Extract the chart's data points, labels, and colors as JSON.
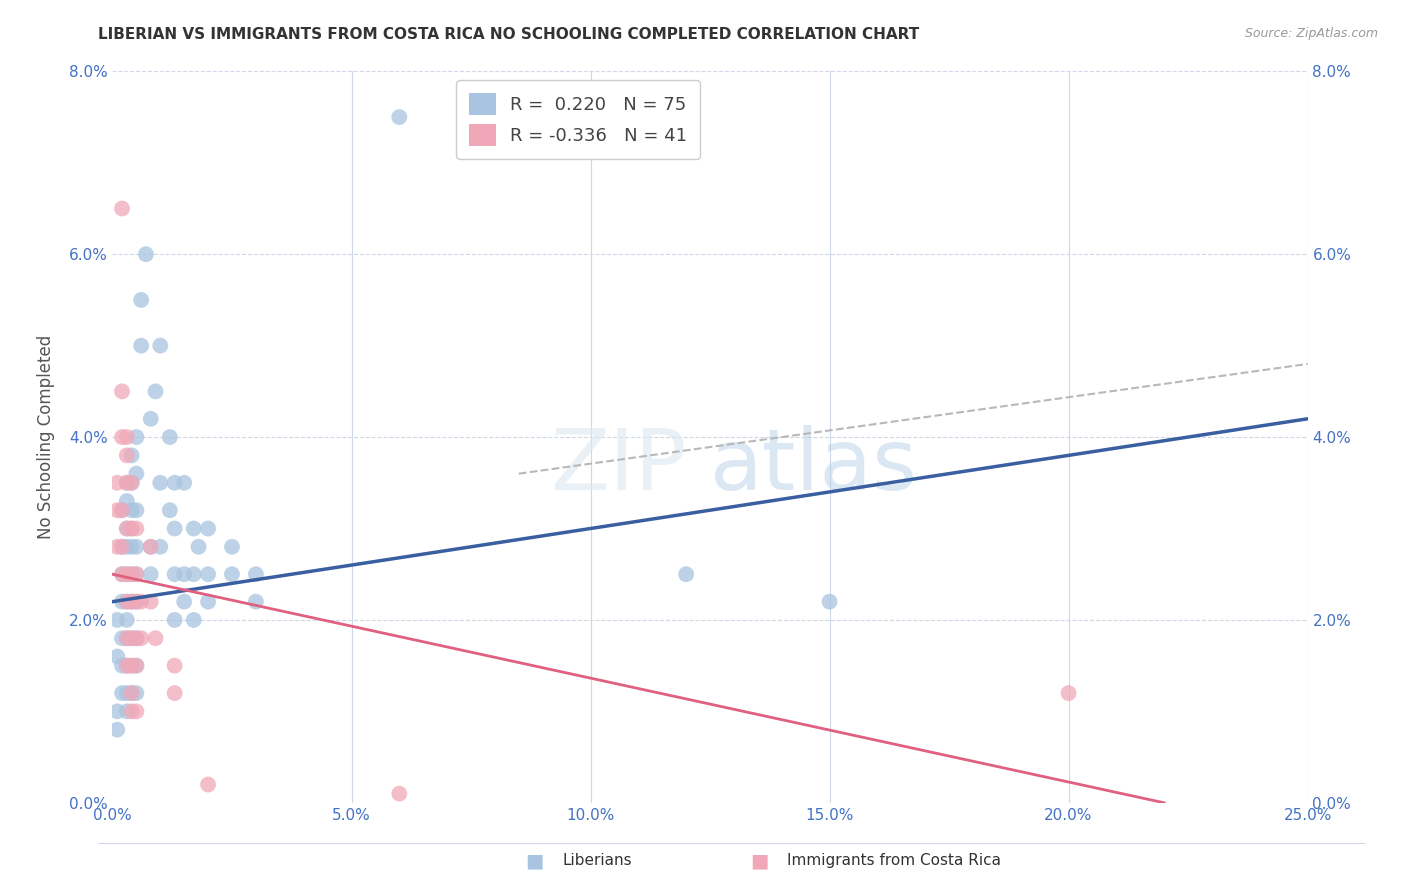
{
  "title": "LIBERIAN VS IMMIGRANTS FROM COSTA RICA NO SCHOOLING COMPLETED CORRELATION CHART",
  "source": "Source: ZipAtlas.com",
  "ylabel_label": "No Schooling Completed",
  "xmin": 0.0,
  "xmax": 0.25,
  "ymin": 0.0,
  "ymax": 0.08,
  "blue_color": "#a8c4e0",
  "pink_color": "#f0a8b8",
  "line_blue": "#3a5fa0",
  "line_pink": "#e06080",
  "line_dash": "#b8b8b8",
  "watermark_zip": "ZIP",
  "watermark_atlas": "atlas",
  "blue_line_x": [
    0.0,
    0.25
  ],
  "blue_line_y": [
    0.022,
    0.042
  ],
  "pink_line_x": [
    0.0,
    0.22
  ],
  "pink_line_y": [
    0.025,
    0.0
  ],
  "dash_line_x": [
    0.085,
    0.25
  ],
  "dash_line_y": [
    0.036,
    0.048
  ],
  "blue_points": [
    [
      0.001,
      0.02
    ],
    [
      0.001,
      0.016
    ],
    [
      0.001,
      0.01
    ],
    [
      0.001,
      0.008
    ],
    [
      0.002,
      0.032
    ],
    [
      0.002,
      0.028
    ],
    [
      0.002,
      0.025
    ],
    [
      0.002,
      0.022
    ],
    [
      0.002,
      0.018
    ],
    [
      0.002,
      0.015
    ],
    [
      0.002,
      0.012
    ],
    [
      0.003,
      0.035
    ],
    [
      0.003,
      0.033
    ],
    [
      0.003,
      0.03
    ],
    [
      0.003,
      0.028
    ],
    [
      0.003,
      0.025
    ],
    [
      0.003,
      0.022
    ],
    [
      0.003,
      0.02
    ],
    [
      0.003,
      0.018
    ],
    [
      0.003,
      0.015
    ],
    [
      0.003,
      0.012
    ],
    [
      0.003,
      0.01
    ],
    [
      0.004,
      0.038
    ],
    [
      0.004,
      0.035
    ],
    [
      0.004,
      0.032
    ],
    [
      0.004,
      0.03
    ],
    [
      0.004,
      0.028
    ],
    [
      0.004,
      0.025
    ],
    [
      0.004,
      0.022
    ],
    [
      0.004,
      0.018
    ],
    [
      0.004,
      0.015
    ],
    [
      0.004,
      0.012
    ],
    [
      0.005,
      0.04
    ],
    [
      0.005,
      0.036
    ],
    [
      0.005,
      0.032
    ],
    [
      0.005,
      0.028
    ],
    [
      0.005,
      0.025
    ],
    [
      0.005,
      0.022
    ],
    [
      0.005,
      0.018
    ],
    [
      0.005,
      0.015
    ],
    [
      0.005,
      0.012
    ],
    [
      0.006,
      0.055
    ],
    [
      0.006,
      0.05
    ],
    [
      0.007,
      0.06
    ],
    [
      0.008,
      0.042
    ],
    [
      0.008,
      0.028
    ],
    [
      0.008,
      0.025
    ],
    [
      0.009,
      0.045
    ],
    [
      0.01,
      0.05
    ],
    [
      0.01,
      0.035
    ],
    [
      0.01,
      0.028
    ],
    [
      0.012,
      0.04
    ],
    [
      0.012,
      0.032
    ],
    [
      0.013,
      0.035
    ],
    [
      0.013,
      0.03
    ],
    [
      0.013,
      0.025
    ],
    [
      0.013,
      0.02
    ],
    [
      0.015,
      0.035
    ],
    [
      0.015,
      0.025
    ],
    [
      0.015,
      0.022
    ],
    [
      0.017,
      0.03
    ],
    [
      0.017,
      0.025
    ],
    [
      0.017,
      0.02
    ],
    [
      0.018,
      0.028
    ],
    [
      0.02,
      0.03
    ],
    [
      0.02,
      0.025
    ],
    [
      0.02,
      0.022
    ],
    [
      0.025,
      0.028
    ],
    [
      0.025,
      0.025
    ],
    [
      0.03,
      0.025
    ],
    [
      0.03,
      0.022
    ],
    [
      0.06,
      0.075
    ],
    [
      0.12,
      0.025
    ],
    [
      0.15,
      0.022
    ]
  ],
  "pink_points": [
    [
      0.001,
      0.035
    ],
    [
      0.001,
      0.032
    ],
    [
      0.001,
      0.028
    ],
    [
      0.002,
      0.065
    ],
    [
      0.002,
      0.045
    ],
    [
      0.002,
      0.04
    ],
    [
      0.002,
      0.032
    ],
    [
      0.002,
      0.028
    ],
    [
      0.002,
      0.025
    ],
    [
      0.003,
      0.04
    ],
    [
      0.003,
      0.038
    ],
    [
      0.003,
      0.035
    ],
    [
      0.003,
      0.03
    ],
    [
      0.003,
      0.025
    ],
    [
      0.003,
      0.022
    ],
    [
      0.003,
      0.018
    ],
    [
      0.003,
      0.015
    ],
    [
      0.004,
      0.035
    ],
    [
      0.004,
      0.03
    ],
    [
      0.004,
      0.025
    ],
    [
      0.004,
      0.022
    ],
    [
      0.004,
      0.018
    ],
    [
      0.004,
      0.015
    ],
    [
      0.004,
      0.012
    ],
    [
      0.004,
      0.01
    ],
    [
      0.005,
      0.03
    ],
    [
      0.005,
      0.025
    ],
    [
      0.005,
      0.022
    ],
    [
      0.005,
      0.018
    ],
    [
      0.005,
      0.015
    ],
    [
      0.005,
      0.01
    ],
    [
      0.006,
      0.022
    ],
    [
      0.006,
      0.018
    ],
    [
      0.008,
      0.028
    ],
    [
      0.008,
      0.022
    ],
    [
      0.009,
      0.018
    ],
    [
      0.013,
      0.015
    ],
    [
      0.013,
      0.012
    ],
    [
      0.02,
      0.002
    ],
    [
      0.2,
      0.012
    ],
    [
      0.06,
      0.001
    ]
  ]
}
